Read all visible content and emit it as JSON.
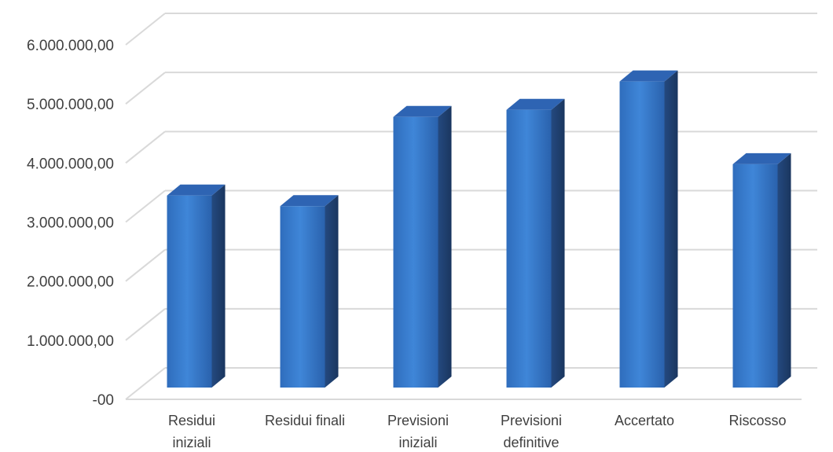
{
  "chart_data": {
    "type": "bar",
    "title": "",
    "xlabel": "",
    "ylabel": "",
    "categories": [
      [
        "Residui",
        "iniziali"
      ],
      [
        "Residui finali"
      ],
      [
        "Previsioni",
        "iniziali"
      ],
      [
        "Previsioni",
        "definitive"
      ],
      [
        "Accertato"
      ],
      [
        "Riscosso"
      ]
    ],
    "values": [
      3250000,
      3070000,
      4580000,
      4700000,
      5180000,
      3780000
    ],
    "ylim": [
      0,
      6000000
    ],
    "yticks": [
      0,
      1000000,
      2000000,
      3000000,
      4000000,
      5000000,
      6000000
    ],
    "ytick_labels": [
      "-00",
      "1.000.000,00",
      "2.000.000,00",
      "3.000.000,00",
      "4.000.000,00",
      "5.000.000,00",
      "6.000.000,00"
    ],
    "grid": true,
    "style": "3d-column",
    "colors": {
      "bar_front": "#3b7dd0",
      "bar_side": "#1f3f6e",
      "bar_top": "#2e64b3",
      "grid": "#d9d9d9",
      "text": "#404040"
    }
  }
}
